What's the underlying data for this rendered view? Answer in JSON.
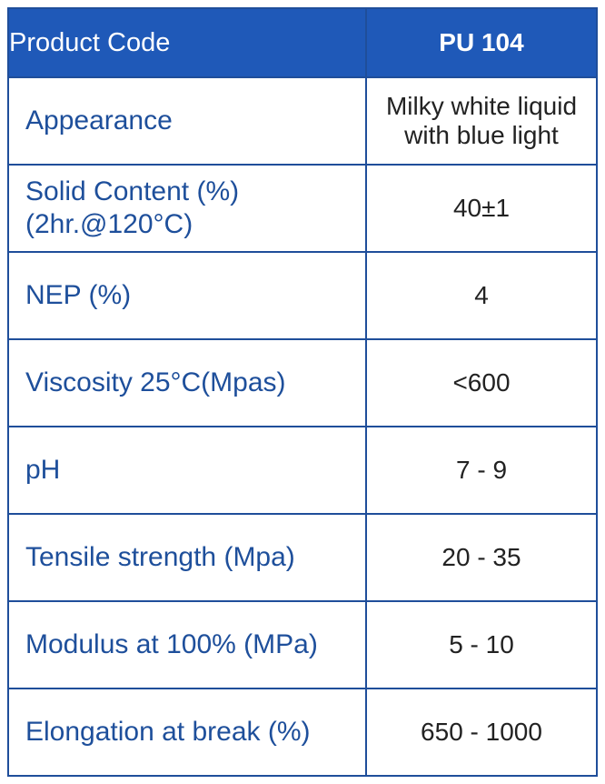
{
  "header": {
    "label": "Product Code",
    "value": "PU 104"
  },
  "rows": [
    {
      "label_lines": [
        "Appearance"
      ],
      "value_lines": [
        "Milky white liquid",
        "with blue light"
      ]
    },
    {
      "label_lines": [
        "Solid Content (%)",
        "(2hr.@120°C)"
      ],
      "value_lines": [
        "40±1"
      ]
    },
    {
      "label_lines": [
        "NEP (%)"
      ],
      "value_lines": [
        "4"
      ]
    },
    {
      "label_lines": [
        "Viscosity 25°C(Mpas)"
      ],
      "value_lines": [
        "<600"
      ]
    },
    {
      "label_lines": [
        "pH"
      ],
      "value_lines": [
        "7 - 9"
      ]
    },
    {
      "label_lines": [
        "Tensile strength (Mpa)"
      ],
      "value_lines": [
        "20 - 35"
      ]
    },
    {
      "label_lines": [
        "Modulus at 100% (MPa)"
      ],
      "value_lines": [
        "5 - 10"
      ]
    },
    {
      "label_lines": [
        "Elongation at break (%)"
      ],
      "value_lines": [
        "650 - 1000"
      ]
    }
  ]
}
